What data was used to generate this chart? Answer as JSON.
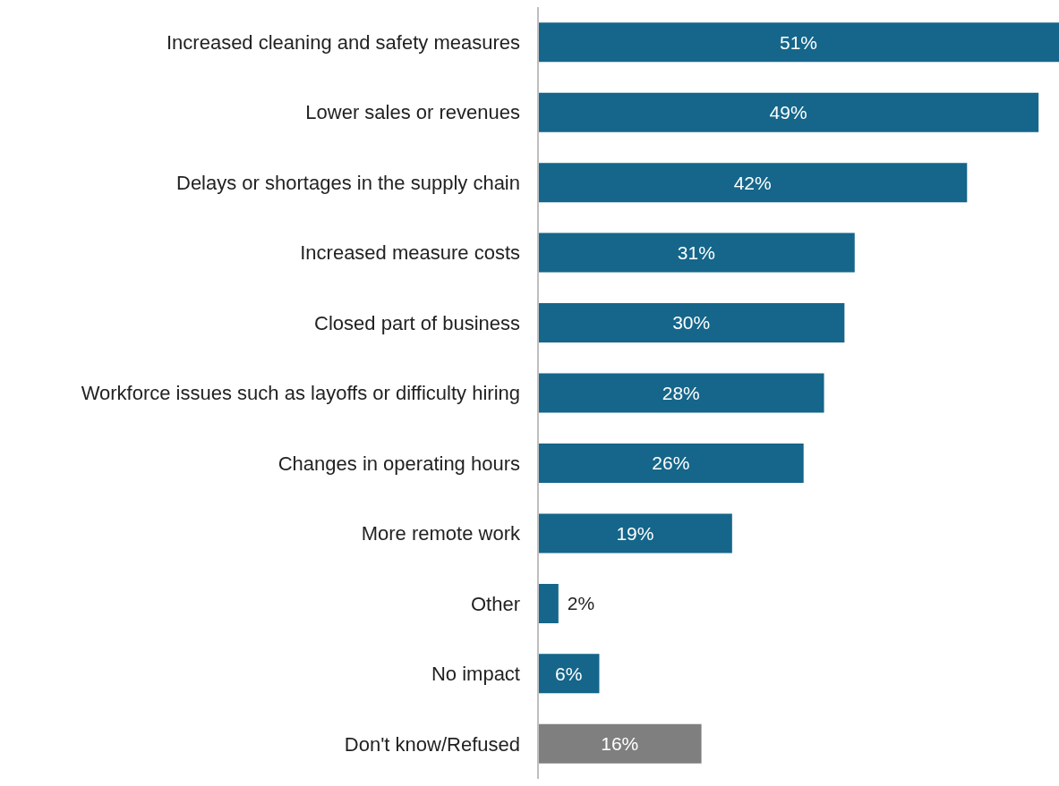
{
  "chart_data": {
    "type": "bar",
    "orientation": "horizontal",
    "categories": [
      "Increased cleaning and safety measures",
      "Lower sales or revenues",
      "Delays or shortages in the supply chain",
      "Increased measure costs",
      "Closed part of business",
      "Workforce issues such as layoffs or difficulty hiring",
      "Changes in operating hours",
      "More remote work",
      "Other",
      "No impact",
      "Don't know/Refused"
    ],
    "values": [
      51,
      49,
      42,
      31,
      30,
      28,
      26,
      19,
      2,
      6,
      16
    ],
    "value_labels": [
      "51%",
      "49%",
      "42%",
      "31%",
      "30%",
      "28%",
      "26%",
      "19%",
      "2%",
      "6%",
      "16%"
    ],
    "colors": [
      "#15668a",
      "#15668a",
      "#15668a",
      "#15668a",
      "#15668a",
      "#15668a",
      "#15668a",
      "#15668a",
      "#15668a",
      "#15668a",
      "#7f7f7f"
    ]
  }
}
